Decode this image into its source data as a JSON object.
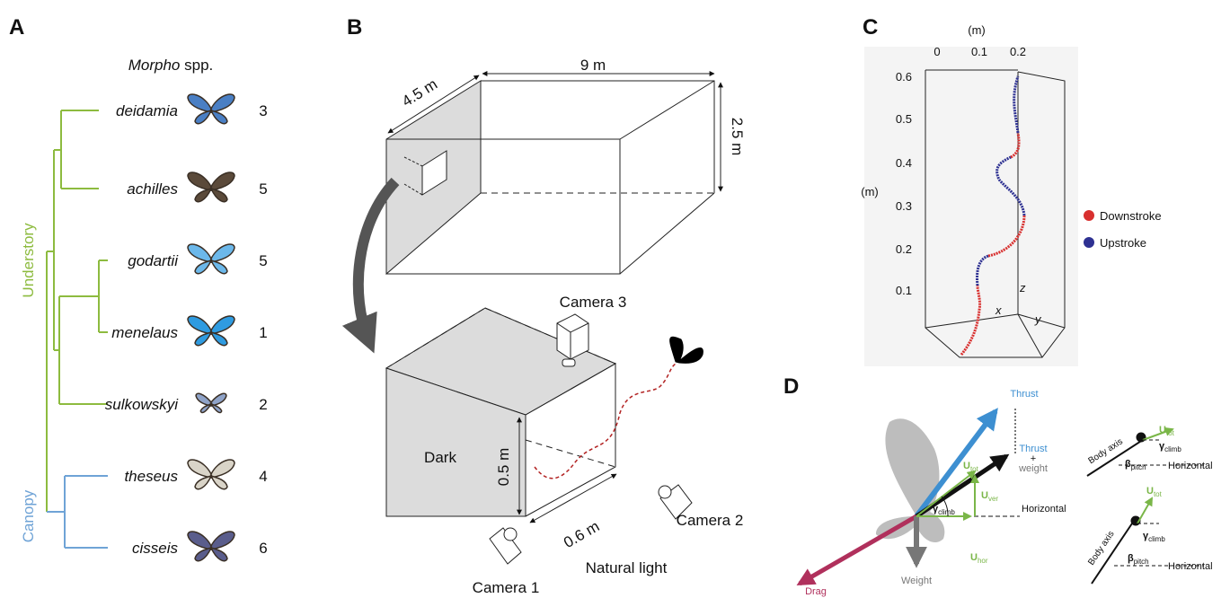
{
  "panels": {
    "a": "A",
    "b": "B",
    "c": "C",
    "d": "D"
  },
  "panel_a": {
    "genus": "Morpho",
    "genus_suffix": " spp.",
    "groups": [
      {
        "name": "Understory",
        "color": "#8dbb3f"
      },
      {
        "name": "Canopy",
        "color": "#6fa3d6"
      }
    ],
    "species": [
      {
        "name": "deidamia",
        "count": 3,
        "wing_color": "#4a7fc4"
      },
      {
        "name": "achilles",
        "count": 5,
        "wing_color": "#5b4a3a"
      },
      {
        "name": "godartii",
        "count": 5,
        "wing_color": "#6cb8ea"
      },
      {
        "name": "menelaus",
        "count": 1,
        "wing_color": "#2f9be0"
      },
      {
        "name": "sulkowskyi",
        "count": 2,
        "wing_color": "#8fa3c8"
      },
      {
        "name": "theseus",
        "count": 4,
        "wing_color": "#d9d4c8"
      },
      {
        "name": "cisseis",
        "count": 6,
        "wing_color": "#5a5d8c"
      }
    ]
  },
  "panel_b": {
    "room_length": "9 m",
    "room_width": "4.5 m",
    "room_height": "2.5 m",
    "camera_3": "Camera 3",
    "dark": "Dark",
    "tunnel_height": "0.5 m",
    "tunnel_width": "0.6 m",
    "camera_2": "Camera 2",
    "camera_1": "Camera 1",
    "natural_light": "Natural light"
  },
  "panel_c": {
    "x_unit": "(m)",
    "xticks": [
      0,
      0.1,
      0.2
    ],
    "z_unit": "(m)",
    "zticks": [
      0.6,
      0.5,
      0.4,
      0.3,
      0.2,
      0.1
    ],
    "axis_x": "x",
    "axis_z": "z",
    "axis_y": "y",
    "legend": [
      {
        "name": "Downstroke",
        "color": "#d8302f"
      },
      {
        "name": "Upstroke",
        "color": "#2e3192"
      }
    ]
  },
  "panel_d": {
    "thrust": "Thrust",
    "thrust_weight": {
      "line1": "Thrust",
      "line2": "+",
      "line3": "weight"
    },
    "u_tot": {
      "base": "U",
      "sub": "tot"
    },
    "u_ver": {
      "base": "U",
      "sub": "ver"
    },
    "u_hor": {
      "base": "U",
      "sub": "hor"
    },
    "gamma_climb": {
      "base": "γ",
      "sub": "climb"
    },
    "horizontal": "Horizontal",
    "weight": "Weight",
    "drag": "Drag",
    "inset_top": {
      "u_tot": {
        "base": "U",
        "sub": "tot"
      },
      "gamma_climb": {
        "base": "γ",
        "sub": "climb"
      },
      "beta_pitch": {
        "base": "β",
        "sub": "pitch"
      },
      "horizontal": "Horizontal",
      "body_axis": "Body axis"
    },
    "inset_bottom": {
      "u_tot": {
        "base": "U",
        "sub": "tot"
      },
      "gamma_climb": {
        "base": "γ",
        "sub": "climb"
      },
      "beta_pitch": {
        "base": "β",
        "sub": "pitch"
      },
      "horizontal": "Horizontal",
      "body_axis": "Body axis"
    }
  }
}
